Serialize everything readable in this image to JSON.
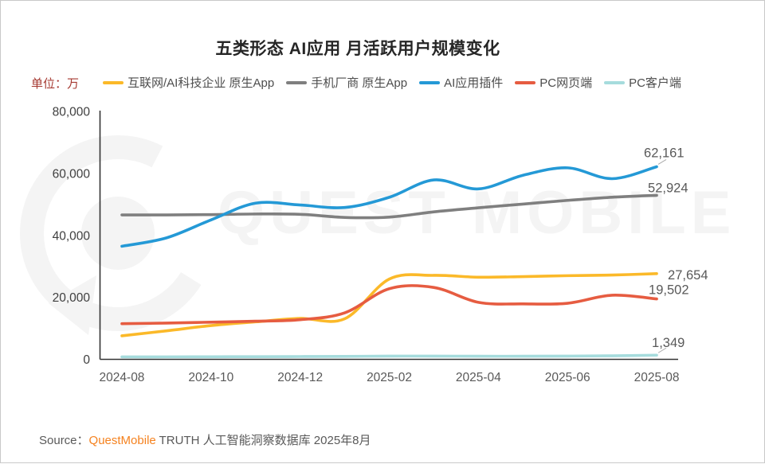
{
  "header": {
    "title": "五类形态 AI应用 月活跃用户规模变化",
    "unit_label": "单位：万"
  },
  "legend": {
    "items": [
      {
        "label": "互联网/AI科技企业 原生App",
        "color": "#FBB929"
      },
      {
        "label": "手机厂商 原生App",
        "color": "#7F7F7F"
      },
      {
        "label": "AI应用插件",
        "color": "#2499D6"
      },
      {
        "label": "PC网页端",
        "color": "#E65C41"
      },
      {
        "label": "PC客户端",
        "color": "#A6DCDD"
      }
    ]
  },
  "watermark": {
    "text": "QUEST MOBILE",
    "color": "#f4f4f4"
  },
  "source": {
    "prefix": "Source：",
    "brand": "QuestMobile",
    "brand_color": "#F5821F",
    "suffix": " TRUTH 人工智能洞察数据库 2025年8月"
  },
  "chart_data": {
    "type": "line",
    "title": "五类形态 AI应用 月活跃用户规模变化",
    "unit": "万",
    "x": [
      "2024-08",
      "2024-09",
      "2024-10",
      "2024-11",
      "2024-12",
      "2025-01",
      "2025-02",
      "2025-03",
      "2025-04",
      "2025-05",
      "2025-06",
      "2025-07",
      "2025-08"
    ],
    "x_tick_indices": [
      0,
      2,
      4,
      6,
      8,
      10,
      12
    ],
    "x_tick_labels": [
      "2024-08",
      "2024-10",
      "2024-12",
      "2025-02",
      "2025-04",
      "2025-06",
      "2025-08"
    ],
    "ylim": [
      0,
      80000
    ],
    "y_ticks": [
      0,
      20000,
      40000,
      60000,
      80000
    ],
    "y_tick_labels": [
      "0",
      "20,000",
      "40,000",
      "60,000",
      "80,000"
    ],
    "grid": false,
    "legend_position": "top",
    "series": [
      {
        "name": "互联网/AI科技企业 原生App",
        "color": "#FBB929",
        "values": [
          7600,
          9200,
          10900,
          12100,
          13200,
          13100,
          25900,
          27100,
          26500,
          26700,
          27000,
          27200,
          27654
        ],
        "end_label": "27,654"
      },
      {
        "name": "手机厂商 原生App",
        "color": "#7F7F7F",
        "values": [
          46600,
          46600,
          46700,
          46900,
          46800,
          45800,
          45900,
          47600,
          48900,
          50100,
          51300,
          52300,
          52924
        ],
        "end_label": "52,924"
      },
      {
        "name": "AI应用插件",
        "color": "#2499D6",
        "values": [
          36500,
          39200,
          45000,
          50400,
          49800,
          49000,
          52300,
          57900,
          55000,
          59400,
          61800,
          58300,
          62161
        ],
        "end_label": "62,161"
      },
      {
        "name": "PC网页端",
        "color": "#E65C41",
        "values": [
          11500,
          11700,
          12000,
          12300,
          12800,
          15000,
          22800,
          23200,
          18400,
          17900,
          18100,
          20700,
          19502
        ],
        "end_label": "19,502"
      },
      {
        "name": "PC客户端",
        "color": "#A6DCDD",
        "values": [
          800,
          800,
          830,
          860,
          900,
          950,
          1050,
          1050,
          1000,
          1000,
          1050,
          1150,
          1349
        ],
        "end_label": "1,349"
      }
    ]
  }
}
